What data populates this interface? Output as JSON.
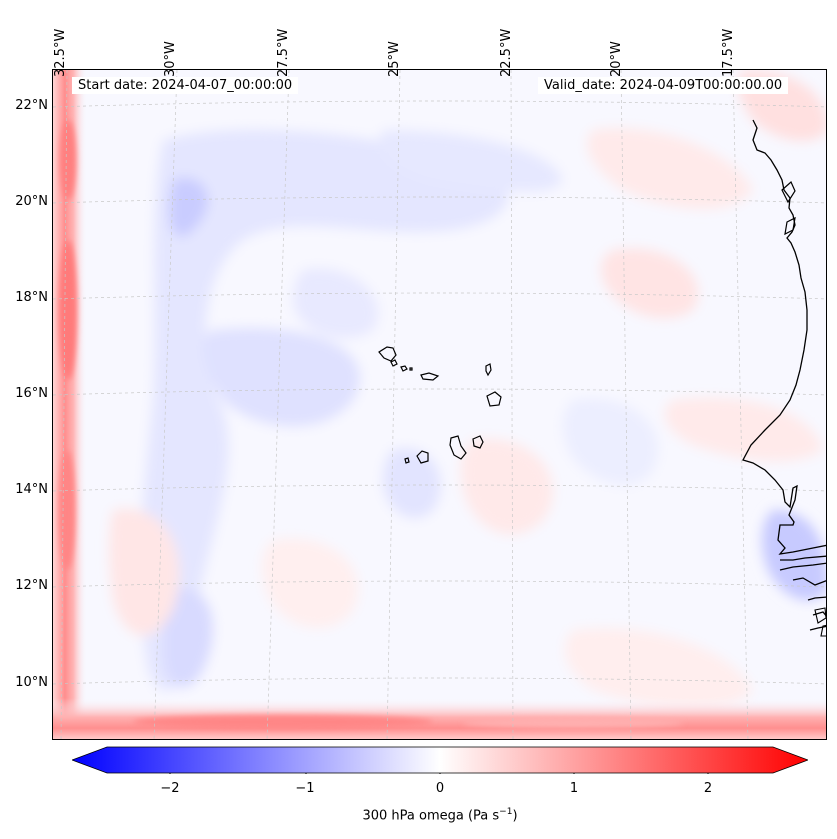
{
  "map": {
    "start_date": "Start date: 2024-04-07_00:00:00",
    "valid_date": "Valid_date: 2024-04-09T00:00:00.00",
    "longitude_labels": [
      "32.5°W",
      "30°W",
      "27.5°W",
      "25°W",
      "22.5°W",
      "20°W",
      "17.5°W"
    ],
    "latitude_labels": [
      "22°N",
      "20°N",
      "18°N",
      "16°N",
      "14°N",
      "12°N",
      "10°N"
    ],
    "colors": {
      "negative_max": "#0000ff",
      "neutral": "#ffffff",
      "positive_max": "#ff0000",
      "coastline": "#000000",
      "gridline": "#c8c8c8"
    }
  },
  "colorbar": {
    "tick_labels": [
      "−2",
      "−1",
      "0",
      "1",
      "2"
    ],
    "label_main": "300 hPa omega (Pa s",
    "label_sup": "−1",
    "label_end": ")"
  }
}
